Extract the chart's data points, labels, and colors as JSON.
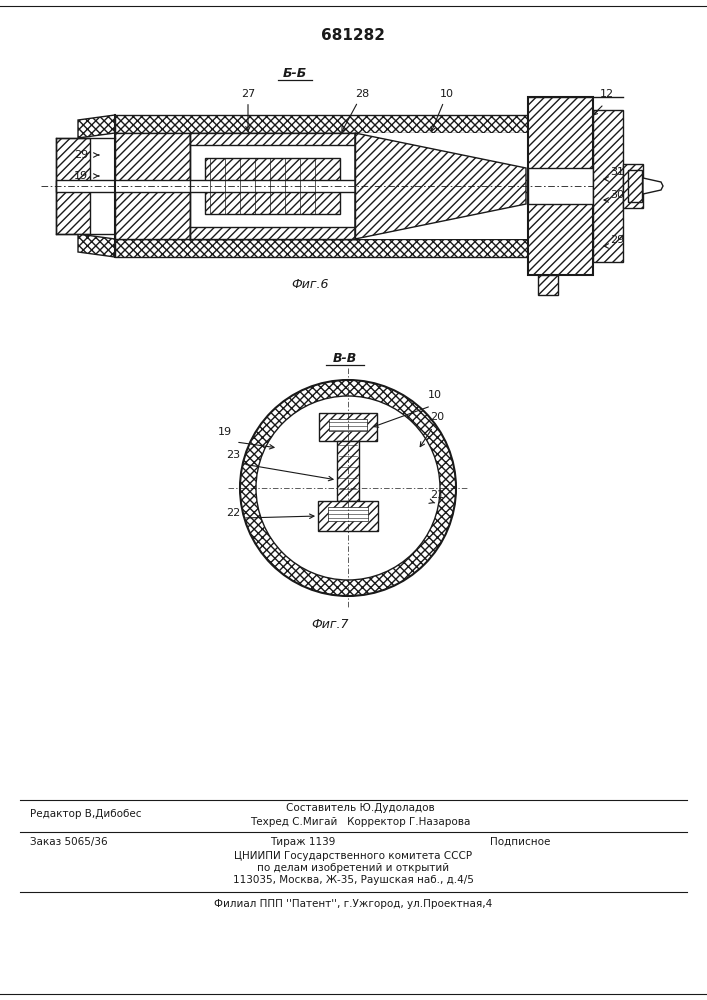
{
  "patent_number": "681282",
  "section_label_top": "Б-Б",
  "section_label_mid": "В-В",
  "fig6_caption": "Фиг.6",
  "fig7_caption": "Фиг.7",
  "footer_line1_left": "Редактор В,Дибобес",
  "footer_line1_center": "Составитель Ю.Дудоладов",
  "footer_line1_right": "Техред С.Мигай   Корректор Г.Назарова",
  "footer_line2_left": "Заказ 5065/36",
  "footer_line2_center": "Тираж 1139",
  "footer_line2_right": "Подписное",
  "footer_line3": "ЦНИИПИ Государственного комитета СССР",
  "footer_line4": "по делам изобретений и открытий",
  "footer_line5": "113035, Москва, Ж-35, Раушская наб., д.4/5",
  "footer_line6": "Филиал ППП ''Патент'', г.Ужгород, ул.Проектная,4",
  "bg_color": "#ffffff",
  "drawing_color": "#1a1a1a",
  "gray_fill": "#c8c8c8"
}
